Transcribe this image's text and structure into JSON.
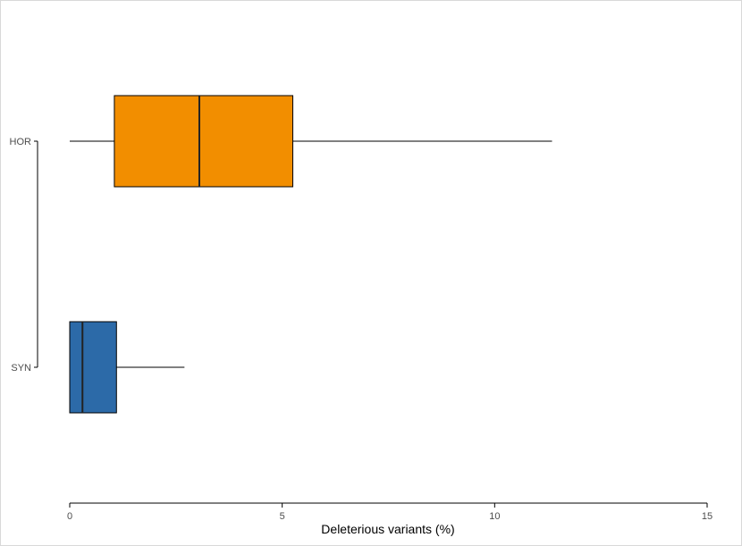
{
  "chart_data": {
    "type": "boxplot",
    "orientation": "horizontal",
    "xlabel": "Deleterious variants (%)",
    "ylabel": "",
    "xlim": [
      0,
      15
    ],
    "x_ticks": [
      "0",
      "5",
      "10",
      "15"
    ],
    "grid": false,
    "legend": "none",
    "categories": [
      "HOR",
      "SYN"
    ],
    "boxes": [
      {
        "category": "HOR",
        "whisker_low": 0.0,
        "q1": 1.05,
        "median": 3.05,
        "q3": 5.25,
        "whisker_high": 11.35,
        "color": "#f28e00"
      },
      {
        "category": "SYN",
        "whisker_low": 0.0,
        "q1": 0.0,
        "median": 0.3,
        "q3": 1.1,
        "whisker_high": 2.7,
        "color": "#2c6aa8"
      }
    ]
  }
}
